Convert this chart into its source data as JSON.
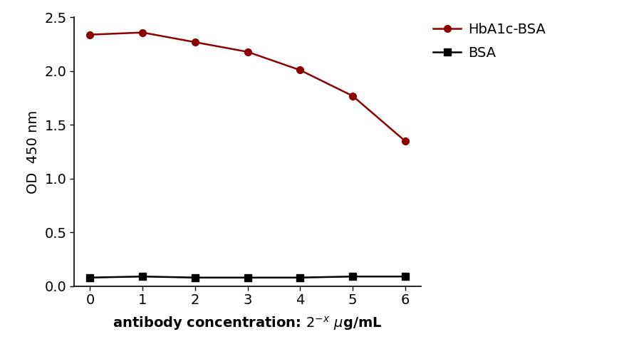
{
  "x": [
    0,
    1,
    2,
    3,
    4,
    5,
    6
  ],
  "hba1c_bsa_y": [
    2.34,
    2.36,
    2.27,
    2.18,
    2.01,
    1.77,
    1.35
  ],
  "bsa_y": [
    0.08,
    0.09,
    0.08,
    0.08,
    0.08,
    0.09,
    0.09
  ],
  "hba1c_color": "#8B0000",
  "bsa_color": "#000000",
  "ylabel": "OD  450 nm",
  "ylim": [
    0.0,
    2.5
  ],
  "xlim": [
    -0.3,
    6.3
  ],
  "yticks": [
    0.0,
    0.5,
    1.0,
    1.5,
    2.0,
    2.5
  ],
  "xticks": [
    0,
    1,
    2,
    3,
    4,
    5,
    6
  ],
  "legend_hba1c": "HbA1c-BSA",
  "legend_bsa": "BSA",
  "hba1c_marker": "o",
  "bsa_marker": "s",
  "line_width": 1.8,
  "marker_size": 7,
  "background_color": "#ffffff",
  "tick_fontsize": 14,
  "label_fontsize": 14,
  "legend_fontsize": 14
}
